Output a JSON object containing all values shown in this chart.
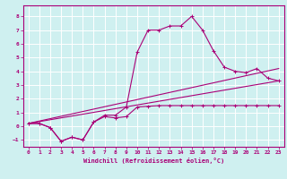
{
  "xlabel": "Windchill (Refroidissement éolien,°C)",
  "bg_color": "#cff0f0",
  "grid_color": "#ffffff",
  "line_color": "#aa0077",
  "xlim": [
    -0.5,
    23.5
  ],
  "ylim": [
    -1.5,
    8.8
  ],
  "xticks": [
    0,
    1,
    2,
    3,
    4,
    5,
    6,
    7,
    8,
    9,
    10,
    11,
    12,
    13,
    14,
    15,
    16,
    17,
    18,
    19,
    20,
    21,
    22,
    23
  ],
  "yticks": [
    -1,
    0,
    1,
    2,
    3,
    4,
    5,
    6,
    7,
    8
  ],
  "series_main_x": [
    0,
    1,
    2,
    3,
    4,
    5,
    6,
    7,
    8,
    9,
    10,
    11,
    12,
    13,
    14,
    15,
    16,
    17,
    18,
    19,
    20,
    21,
    22,
    23
  ],
  "series_main_y": [
    0.2,
    0.2,
    -0.1,
    -1.1,
    -0.8,
    -1.0,
    0.3,
    0.8,
    0.8,
    1.4,
    5.4,
    7.0,
    7.0,
    7.3,
    7.3,
    8.0,
    7.0,
    5.5,
    4.3,
    4.0,
    3.9,
    4.2,
    3.5,
    3.3
  ],
  "series_low_x": [
    0,
    1,
    2,
    3,
    4,
    5,
    6,
    7,
    8,
    9,
    10,
    11,
    12,
    13,
    14,
    15,
    16,
    17,
    18,
    19,
    20,
    21,
    22,
    23
  ],
  "series_low_y": [
    0.2,
    0.2,
    -0.1,
    -1.1,
    -0.8,
    -1.0,
    0.3,
    0.7,
    0.6,
    0.7,
    1.4,
    1.45,
    1.5,
    1.5,
    1.5,
    1.5,
    1.5,
    1.5,
    1.5,
    1.5,
    1.5,
    1.5,
    1.5,
    1.5
  ],
  "line1_x": [
    0,
    23
  ],
  "line1_y": [
    0.2,
    4.2
  ],
  "line2_x": [
    0,
    23
  ],
  "line2_y": [
    0.2,
    3.3
  ]
}
